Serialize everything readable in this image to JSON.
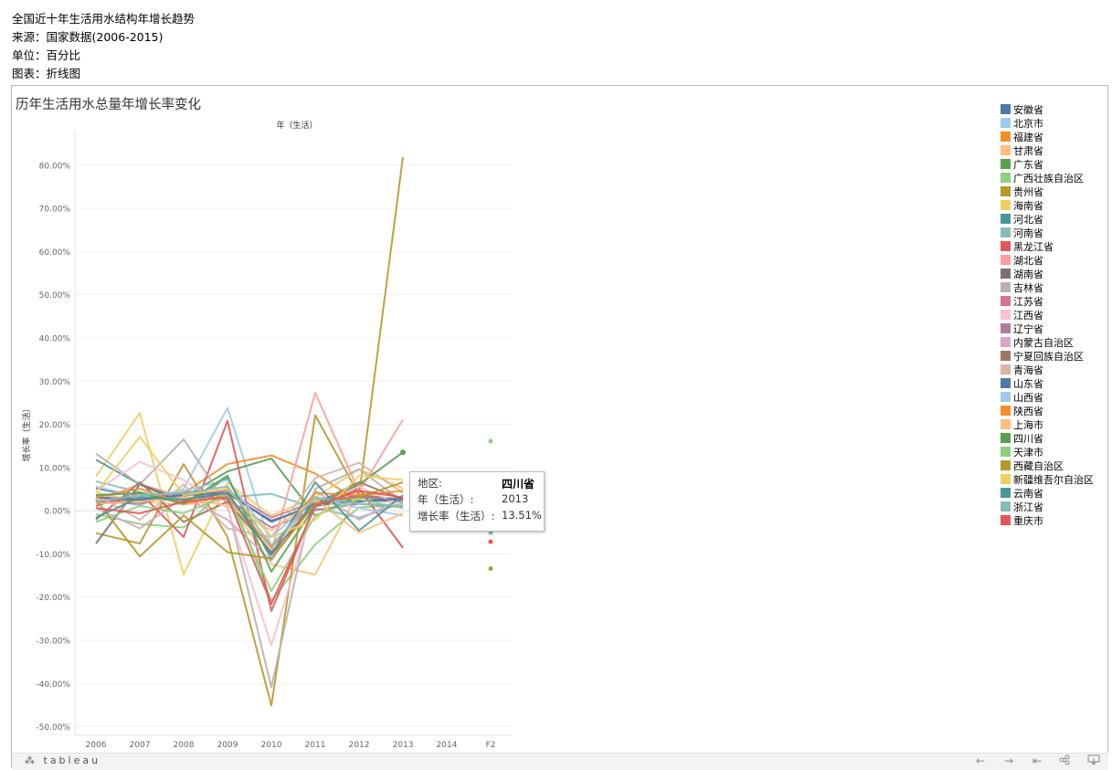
{
  "header": {
    "title": "全国近十年生活用水结构年增长趋势",
    "source": "来源：国家数据(2006-2015)",
    "unit": "单位：百分比",
    "chart_kind": "图表：折线图"
  },
  "view": {
    "title": "历年生活用水总量年增长率变化",
    "column_header": "年（生活）"
  },
  "tooltip": {
    "region_key": "地区:",
    "region_val": "四川省",
    "year_key": "年（生活）:",
    "year_val": "2013",
    "rate_key": "增长率（生活）:",
    "rate_val": "13.51%"
  },
  "toolbar": {
    "brand": "tableau",
    "undo_icon": "←",
    "redo_icon": "→",
    "revert_icon": "⇤",
    "share_icon": "share-icon",
    "download_icon": "download-icon"
  },
  "chart_data": {
    "type": "line",
    "x": [
      "2006",
      "2007",
      "2008",
      "2009",
      "2010",
      "2011",
      "2012",
      "2013",
      "2014",
      "F2"
    ],
    "ylabel": "增长率（生活）",
    "xlabel": "年（生活）",
    "ylim": [
      -52,
      88
    ],
    "yticks": [
      -50,
      -40,
      -30,
      -20,
      -10,
      0,
      10,
      20,
      30,
      40,
      50,
      60,
      70,
      80
    ],
    "ytick_labels": [
      "-50.00%",
      "-40.00%",
      "-30.00%",
      "-20.00%",
      "-10.00%",
      "0.00%",
      "10.00%",
      "20.00%",
      "30.00%",
      "40.00%",
      "50.00%",
      "60.00%",
      "70.00%",
      "80.00%"
    ],
    "grid": "horizontal",
    "legend_position": "right",
    "series": [
      {
        "name": "安徽省",
        "color": "#4e79a7",
        "values": [
          5.2,
          3.1,
          4.4,
          3.9,
          -2.3,
          1.1,
          2.4,
          2.1,
          null,
          null
        ]
      },
      {
        "name": "北京市",
        "color": "#a0cbe8",
        "values": [
          3.1,
          1.2,
          5.1,
          23.8,
          -8.5,
          2.1,
          3.4,
          1.9,
          null,
          null
        ]
      },
      {
        "name": "福建省",
        "color": "#f28e2b",
        "values": [
          2.4,
          3.5,
          4.1,
          10.8,
          12.8,
          8.6,
          2.1,
          3.1,
          null,
          null
        ]
      },
      {
        "name": "甘肃省",
        "color": "#ffbe7d",
        "values": [
          4.2,
          2.1,
          1.4,
          2.6,
          -12.4,
          -14.8,
          4.6,
          1.2,
          null,
          null
        ]
      },
      {
        "name": "广东省",
        "color": "#59a14f",
        "values": [
          1.6,
          2.4,
          3.1,
          9.1,
          12.1,
          -1.2,
          3.6,
          2.6,
          null,
          null
        ]
      },
      {
        "name": "广西壮族自治区",
        "color": "#8cd17d",
        "values": [
          -0.8,
          -3.1,
          -3.9,
          5.6,
          -20.8,
          -7.8,
          0.8,
          1.2,
          null,
          16.1
        ]
      },
      {
        "name": "贵州省",
        "color": "#b6992d",
        "values": [
          -5.2,
          -7.6,
          10.8,
          -6.1,
          -45.1,
          22.1,
          3.6,
          81.9,
          null,
          -13.4
        ]
      },
      {
        "name": "海南省",
        "color": "#f1ce63",
        "values": [
          7.9,
          22.6,
          -14.8,
          6.4,
          -1.1,
          3.1,
          9.6,
          5.2,
          null,
          null
        ]
      },
      {
        "name": "河北省",
        "color": "#499894",
        "values": [
          11.8,
          6.1,
          1.6,
          7.6,
          -11.2,
          2.6,
          3.1,
          2.3,
          null,
          null
        ]
      },
      {
        "name": "河南省",
        "color": "#86bcb6",
        "values": [
          6.8,
          4.3,
          2.3,
          3.1,
          3.9,
          0.6,
          -1.6,
          1.8,
          null,
          -5.1
        ]
      },
      {
        "name": "黑龙江省",
        "color": "#e15759",
        "values": [
          1.1,
          4.2,
          -6.1,
          20.8,
          -23.2,
          1.1,
          5.1,
          -8.6,
          null,
          -7.2
        ]
      },
      {
        "name": "湖北省",
        "color": "#ff9d9a",
        "values": [
          2.1,
          6.2,
          3.1,
          3.1,
          -9.6,
          27.3,
          4.4,
          21.1,
          null,
          null
        ]
      },
      {
        "name": "湖南省",
        "color": "#79706e",
        "values": [
          -7.6,
          6.1,
          2.4,
          4.1,
          -10.2,
          1.6,
          3.6,
          2.2,
          null,
          null
        ]
      },
      {
        "name": "吉林省",
        "color": "#bab0ac",
        "values": [
          13.2,
          6.1,
          16.5,
          1.3,
          -40.9,
          5.1,
          9.6,
          2.1,
          null,
          null
        ]
      },
      {
        "name": "江苏省",
        "color": "#d37295",
        "values": [
          1.6,
          3.1,
          3.8,
          4.6,
          -1.6,
          2.1,
          3.3,
          2.6,
          null,
          null
        ]
      },
      {
        "name": "江西省",
        "color": "#fabfd2",
        "values": [
          4.6,
          11.3,
          7.1,
          0.6,
          -31.2,
          2.1,
          5.6,
          1.1,
          null,
          null
        ]
      },
      {
        "name": "辽宁省",
        "color": "#b07aa1",
        "values": [
          2.1,
          1.6,
          4.1,
          2.6,
          -3.9,
          0.1,
          1.6,
          0.8,
          null,
          null
        ]
      },
      {
        "name": "内蒙古自治区",
        "color": "#d4a6c8",
        "values": [
          0.6,
          -4.1,
          3.1,
          -2.1,
          -11.6,
          4.6,
          -2.1,
          3.1,
          null,
          null
        ]
      },
      {
        "name": "宁夏回族自治区",
        "color": "#9d7660",
        "values": [
          -2.1,
          6.6,
          -2.6,
          2.1,
          -9.6,
          1.6,
          6.6,
          2.6,
          null,
          null
        ]
      },
      {
        "name": "青海省",
        "color": "#d7b5a6",
        "values": [
          3.6,
          -2.1,
          6.1,
          -4.1,
          -6.1,
          7.6,
          11.1,
          4.1,
          null,
          null
        ]
      },
      {
        "name": "山东省",
        "color": "#4e79a7",
        "values": [
          3.1,
          2.6,
          3.6,
          4.1,
          -2.6,
          1.6,
          2.1,
          2.8,
          null,
          null
        ]
      },
      {
        "name": "山西省",
        "color": "#a0cbe8",
        "values": [
          5.6,
          3.1,
          4.6,
          7.1,
          -6.1,
          3.1,
          0.6,
          -1.1,
          null,
          null
        ]
      },
      {
        "name": "陕西省",
        "color": "#f28e2b",
        "values": [
          3.1,
          5.1,
          1.6,
          3.6,
          -8.6,
          4.1,
          3.6,
          4.6,
          null,
          null
        ]
      },
      {
        "name": "上海市",
        "color": "#ffbe7d",
        "values": [
          1.6,
          2.1,
          3.1,
          1.1,
          -4.6,
          2.6,
          -5.1,
          -0.6,
          null,
          null
        ]
      },
      {
        "name": "四川省",
        "color": "#59a14f",
        "values": [
          3.6,
          4.1,
          1.6,
          8.1,
          -14.1,
          1.1,
          6.1,
          13.51,
          null,
          null
        ]
      },
      {
        "name": "天津市",
        "color": "#8cd17d",
        "values": [
          -2.6,
          1.1,
          -0.6,
          3.6,
          -18.6,
          -1.1,
          2.6,
          0.6,
          null,
          null
        ]
      },
      {
        "name": "西藏自治区",
        "color": "#b6992d",
        "values": [
          2.6,
          -10.6,
          -1.1,
          -9.6,
          -11.1,
          1.6,
          3.1,
          6.6,
          null,
          null
        ]
      },
      {
        "name": "新疆维吾尔自治区",
        "color": "#f1ce63",
        "values": [
          4.1,
          17.1,
          3.6,
          5.1,
          -6.1,
          -2.1,
          8.1,
          7.1,
          null,
          null
        ]
      },
      {
        "name": "云南省",
        "color": "#499894",
        "values": [
          -1.6,
          3.1,
          2.6,
          4.1,
          -10.1,
          6.6,
          -4.6,
          3.6,
          null,
          null
        ]
      },
      {
        "name": "浙江省",
        "color": "#86bcb6",
        "values": [
          2.1,
          3.6,
          4.1,
          5.6,
          -8.1,
          3.1,
          1.6,
          1.1,
          null,
          null
        ]
      },
      {
        "name": "重庆市",
        "color": "#e15759",
        "values": [
          0.6,
          -0.6,
          2.1,
          3.1,
          -21.6,
          1.1,
          4.6,
          3.1,
          null,
          null
        ]
      }
    ]
  }
}
